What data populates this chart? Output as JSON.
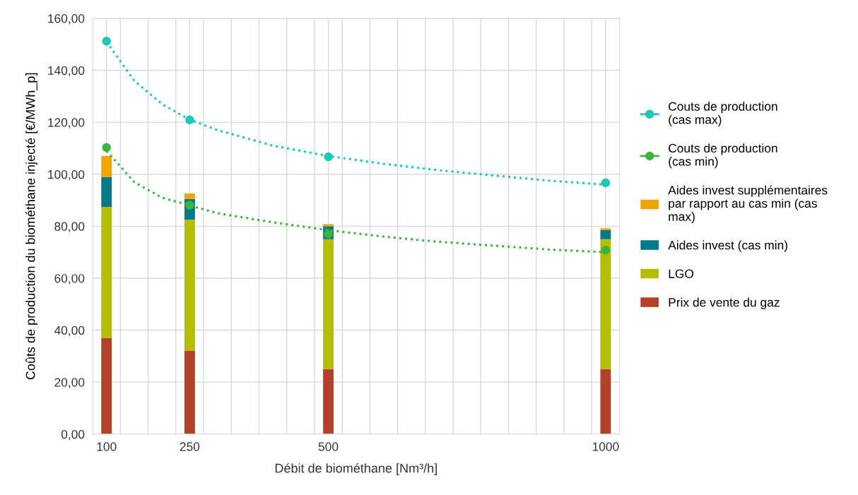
{
  "chart_data": {
    "type": "bar",
    "stacked": true,
    "xlabel": "Débit de biométhane [Nm³/h]",
    "ylabel": "Coûts de production du biométhane injecté [€/MWh_p]",
    "x": [
      100,
      250,
      500,
      1000
    ],
    "series": [
      {
        "name": "Prix de vente du gaz",
        "color": "#b5402a",
        "values": [
          37,
          32,
          25,
          25
        ]
      },
      {
        "name": "LGO",
        "color": "#b5bd00",
        "values": [
          50.4,
          50.5,
          50,
          50
        ]
      },
      {
        "name": "Aides invest (cas min)",
        "color": "#00798c",
        "values": [
          11.5,
          8,
          5,
          3.5
        ]
      },
      {
        "name": "Aides invest supplémentaires\npar rapport au cas min (cas\nmax)",
        "color": "#f0a500",
        "values": [
          8.1,
          2.1,
          0.8,
          0.7
        ]
      },
      {
        "type": "scatter",
        "name": "Couts de production\n(cas min)",
        "color": "#3cb53c",
        "marker": "circle",
        "values": [
          110.3,
          88.1,
          77,
          70.8
        ]
      },
      {
        "type": "scatter",
        "name": "Couts de production\n(cas max)",
        "color": "#1ec8b4",
        "marker": "circle",
        "values": [
          151.2,
          120.9,
          106.7,
          96.7
        ]
      },
      {
        "type": "line",
        "color": "#3cb53c",
        "line_style": "dotted",
        "x": [
          100,
          150,
          200,
          250,
          300,
          400,
          500,
          600,
          700,
          800,
          900,
          1000
        ],
        "values": [
          109,
          97,
          91,
          88,
          85,
          81.5,
          78.5,
          76,
          74,
          72.5,
          71,
          70
        ]
      },
      {
        "type": "line",
        "color": "#1ec8b4",
        "line_style": "dotted",
        "x": [
          100,
          150,
          200,
          250,
          300,
          400,
          500,
          600,
          700,
          800,
          900,
          1000
        ],
        "values": [
          151,
          136,
          127,
          121,
          117,
          111,
          107,
          104,
          101.5,
          99.5,
          97.5,
          96
        ]
      }
    ],
    "xlim": [
      75,
      1025
    ],
    "xticks": [
      {
        "value": 100,
        "label": "100"
      },
      {
        "value": 125,
        "label": null
      },
      {
        "value": 175,
        "label": null
      },
      {
        "value": 225,
        "label": null
      },
      {
        "value": 250,
        "label": "250"
      },
      {
        "value": 275,
        "label": null
      },
      {
        "value": 325,
        "label": null
      },
      {
        "value": 375,
        "label": null
      },
      {
        "value": 425,
        "label": null
      },
      {
        "value": 475,
        "label": null
      },
      {
        "value": 500,
        "label": "500"
      },
      {
        "value": 525,
        "label": null
      },
      {
        "value": 575,
        "label": null
      },
      {
        "value": 625,
        "label": null
      },
      {
        "value": 675,
        "label": null
      },
      {
        "value": 725,
        "label": null
      },
      {
        "value": 775,
        "label": null
      },
      {
        "value": 825,
        "label": null
      },
      {
        "value": 875,
        "label": null
      },
      {
        "value": 925,
        "label": null
      },
      {
        "value": 975,
        "label": null
      },
      {
        "value": 1000,
        "label": "1000"
      }
    ],
    "ylim": [
      0,
      160
    ],
    "yticks": [
      {
        "value": 0,
        "label": "0,00"
      },
      {
        "value": 20,
        "label": "20,00"
      },
      {
        "value": 40,
        "label": "40,00"
      },
      {
        "value": 60,
        "label": "60,00"
      },
      {
        "value": 80,
        "label": "80,00"
      },
      {
        "value": 100,
        "label": "100,00"
      },
      {
        "value": 120,
        "label": "120,00"
      },
      {
        "value": 140,
        "label": "140,00"
      },
      {
        "value": 160,
        "label": "160,00"
      }
    ],
    "grid": true,
    "legend": "right"
  }
}
